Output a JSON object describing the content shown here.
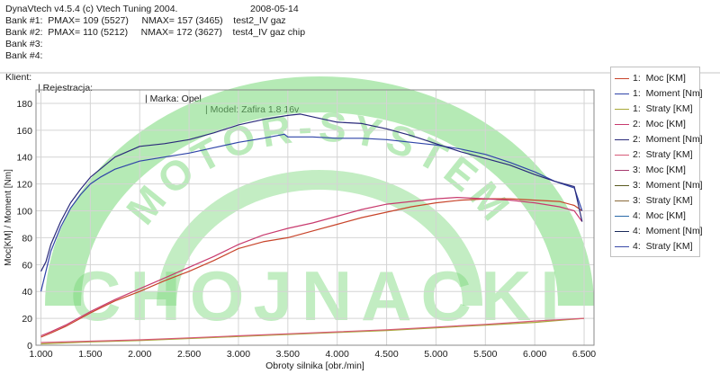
{
  "header": {
    "app_line": "DynaVtech v4.5.4 (c) Vtech Tuning 2004.",
    "date": "2008-05-14",
    "bank1": "Bank #1:  PMAX= 109 (5527)     NMAX= 157 (3465)    test2_IV gaz",
    "bank2": "Bank #2:  PMAX= 110 (5212)     NMAX= 172 (3627)    test4_IV gaz chip",
    "bank3": "Bank #3:",
    "bank4": "Bank #4:"
  },
  "client": {
    "klient": "Klient:",
    "rejestracja": "| Rejestracja:",
    "marka": "| Marka: Opel",
    "model": "| Model: Zafira 1.8 16v"
  },
  "watermark": {
    "arc_text": "MOTOR-SYSTEM",
    "big_text": "CHOJNACKI",
    "color": "#79d879"
  },
  "legend": [
    {
      "label": "1:  Moc [KM]",
      "color": "#c8442a"
    },
    {
      "label": "1:  Moment [Nm]",
      "color": "#2f44a8"
    },
    {
      "label": "1:  Straty [KM]",
      "color": "#a8a838"
    },
    {
      "label": "2:  Moc [KM]",
      "color": "#c83a6e"
    },
    {
      "label": "2:  Moment [Nm]",
      "color": "#2a2a7a"
    },
    {
      "label": "2:  Straty [KM]",
      "color": "#d85a78"
    },
    {
      "label": "3:  Moc [KM]",
      "color": "#a63a6e"
    },
    {
      "label": "3:  Moment [Nm]",
      "color": "#5a5a20"
    },
    {
      "label": "3:  Straty [KM]",
      "color": "#8a6a3a"
    },
    {
      "label": "4:  Moc [KM]",
      "color": "#2a6aa8"
    },
    {
      "label": "4:  Moment [Nm]",
      "color": "#1a2a5a"
    },
    {
      "label": "4:  Straty [KM]",
      "color": "#3a4aa8"
    }
  ],
  "chart_data": {
    "type": "line",
    "xlabel": "Obroty silnika [obr./min]",
    "ylabel": "Moc[KM] / Moment [Nm]",
    "xlim": [
      950,
      6600
    ],
    "ylim": [
      0,
      190
    ],
    "x_ticks": [
      1000,
      1500,
      2000,
      2500,
      3000,
      3500,
      4000,
      4500,
      5000,
      5500,
      6000,
      6500
    ],
    "x_tick_labels": [
      "1.000",
      "1.500",
      "2.000",
      "2.500",
      "3.000",
      "3.500",
      "4.000",
      "4.500",
      "5.000",
      "5.500",
      "6.000",
      "6.500"
    ],
    "y_ticks": [
      0,
      20,
      40,
      60,
      80,
      100,
      120,
      140,
      160,
      180
    ],
    "y_tick_labels": [
      "0",
      "20",
      "40",
      "60",
      "80",
      "100",
      "120",
      "140",
      "160",
      "180"
    ],
    "grid": true,
    "legend_position": "right",
    "series": [
      {
        "name": "1:  Moc [KM]",
        "color": "#c8442a",
        "x": [
          1000,
          1100,
          1250,
          1500,
          1750,
          2000,
          2250,
          2500,
          2750,
          3000,
          3250,
          3500,
          3750,
          4000,
          4250,
          4500,
          4750,
          5000,
          5250,
          5527,
          5750,
          6000,
          6250,
          6400,
          6480
        ],
        "y": [
          6,
          9,
          14,
          24,
          33,
          40,
          48,
          55,
          63,
          72,
          77,
          80,
          85,
          90,
          95,
          99,
          103,
          106,
          108,
          109,
          109,
          108,
          107,
          104,
          100
        ]
      },
      {
        "name": "1:  Moment [Nm]",
        "color": "#2f44a8",
        "x": [
          1000,
          1050,
          1100,
          1200,
          1300,
          1400,
          1500,
          1600,
          1750,
          2000,
          2250,
          2500,
          2750,
          3000,
          3250,
          3465,
          3500,
          3750,
          4000,
          4250,
          4500,
          4750,
          5000,
          5250,
          5500,
          5750,
          6000,
          6200,
          6400,
          6480
        ],
        "y": [
          40,
          55,
          70,
          88,
          102,
          112,
          120,
          125,
          131,
          137,
          140,
          143,
          147,
          151,
          154,
          157,
          155,
          155,
          154,
          154,
          153,
          151,
          149,
          146,
          142,
          136,
          129,
          122,
          117,
          100
        ]
      },
      {
        "name": "1:  Straty [KM]",
        "color": "#a8a838",
        "x": [
          1000,
          1500,
          2000,
          2500,
          3000,
          3500,
          4000,
          4500,
          5000,
          5500,
          6000,
          6500
        ],
        "y": [
          1,
          2.5,
          3.5,
          5,
          6.5,
          8,
          9.5,
          11,
          13,
          15,
          17,
          20
        ]
      },
      {
        "name": "2:  Moc [KM]",
        "color": "#c83a6e",
        "x": [
          1000,
          1100,
          1250,
          1500,
          1750,
          2000,
          2250,
          2500,
          2750,
          3000,
          3250,
          3500,
          3750,
          4000,
          4250,
          4500,
          4750,
          5000,
          5212,
          5500,
          5750,
          6000,
          6250,
          6400,
          6480
        ],
        "y": [
          7,
          10,
          15,
          25,
          34,
          42,
          50,
          58,
          66,
          75,
          82,
          87,
          91,
          96,
          101,
          105,
          107,
          109,
          110,
          109,
          108,
          106,
          103,
          100,
          92
        ]
      },
      {
        "name": "2:  Moment [Nm]",
        "color": "#2a2a7a",
        "x": [
          1000,
          1050,
          1100,
          1200,
          1300,
          1400,
          1500,
          1600,
          1750,
          2000,
          2250,
          2500,
          2750,
          3000,
          3250,
          3500,
          3627,
          3750,
          4000,
          4250,
          4500,
          4750,
          5000,
          5250,
          5500,
          5750,
          6000,
          6200,
          6400,
          6480
        ],
        "y": [
          55,
          62,
          75,
          92,
          106,
          116,
          125,
          131,
          140,
          148,
          150,
          153,
          158,
          164,
          168,
          171,
          172,
          170,
          166,
          165,
          161,
          156,
          150,
          144,
          139,
          134,
          127,
          122,
          118,
          92
        ]
      },
      {
        "name": "2:  Straty [KM]",
        "color": "#d85a78",
        "x": [
          1000,
          1500,
          2000,
          2500,
          3000,
          3500,
          4000,
          4500,
          5000,
          5500,
          6000,
          6500
        ],
        "y": [
          2,
          3,
          4,
          5.5,
          7,
          8.5,
          10,
          11.5,
          13.5,
          15.5,
          18,
          20
        ]
      }
    ]
  }
}
